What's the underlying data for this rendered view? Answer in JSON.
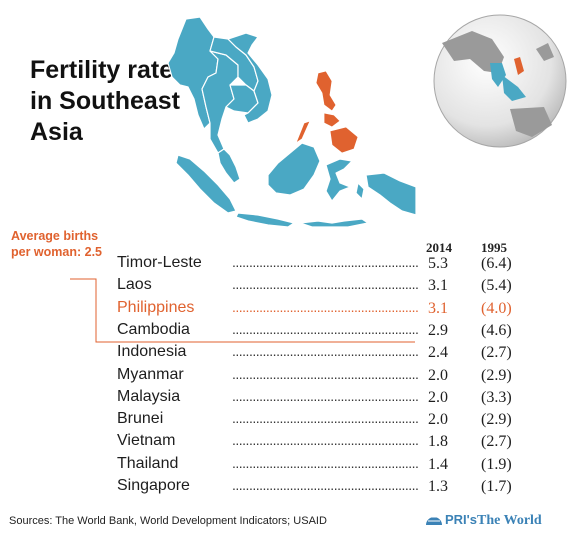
{
  "title": "Fertility rates in Southeast Asia",
  "average_label": "Average births per woman: 2.5",
  "columns": {
    "y2014": "2014",
    "y1995": "1995"
  },
  "highlight_color": "#e0622f",
  "map_color": "#4aa8c4",
  "dot_leader": "........................................................................",
  "rows": [
    {
      "country": "Timor-Leste",
      "v2014": "5.3",
      "v1995": "(6.4)",
      "highlight": false
    },
    {
      "country": "Laos",
      "v2014": "3.1",
      "v1995": "(5.4)",
      "highlight": false
    },
    {
      "country": "Philippines",
      "v2014": "3.1",
      "v1995": "(4.0)",
      "highlight": true
    },
    {
      "country": "Cambodia",
      "v2014": "2.9",
      "v1995": "(4.6)",
      "highlight": false
    },
    {
      "country": "Indonesia",
      "v2014": "2.4",
      "v1995": "(2.7)",
      "highlight": false
    },
    {
      "country": "Myanmar",
      "v2014": "2.0",
      "v1995": "(2.9)",
      "highlight": false
    },
    {
      "country": "Malaysia",
      "v2014": "2.0",
      "v1995": "(3.3)",
      "highlight": false
    },
    {
      "country": "Brunei",
      "v2014": "2.0",
      "v1995": "(2.9)",
      "highlight": false
    },
    {
      "country": "Vietnam",
      "v2014": "1.8",
      "v1995": "(2.7)",
      "highlight": false
    },
    {
      "country": "Thailand",
      "v2014": "1.4",
      "v1995": "(1.9)",
      "highlight": false
    },
    {
      "country": "Singapore",
      "v2014": "1.3",
      "v1995": "(1.7)",
      "highlight": false
    }
  ],
  "sources": "Sources: The World Bank, World Development Indicators; USAID",
  "logo": {
    "pri": "PRI's",
    "world": "The World"
  }
}
